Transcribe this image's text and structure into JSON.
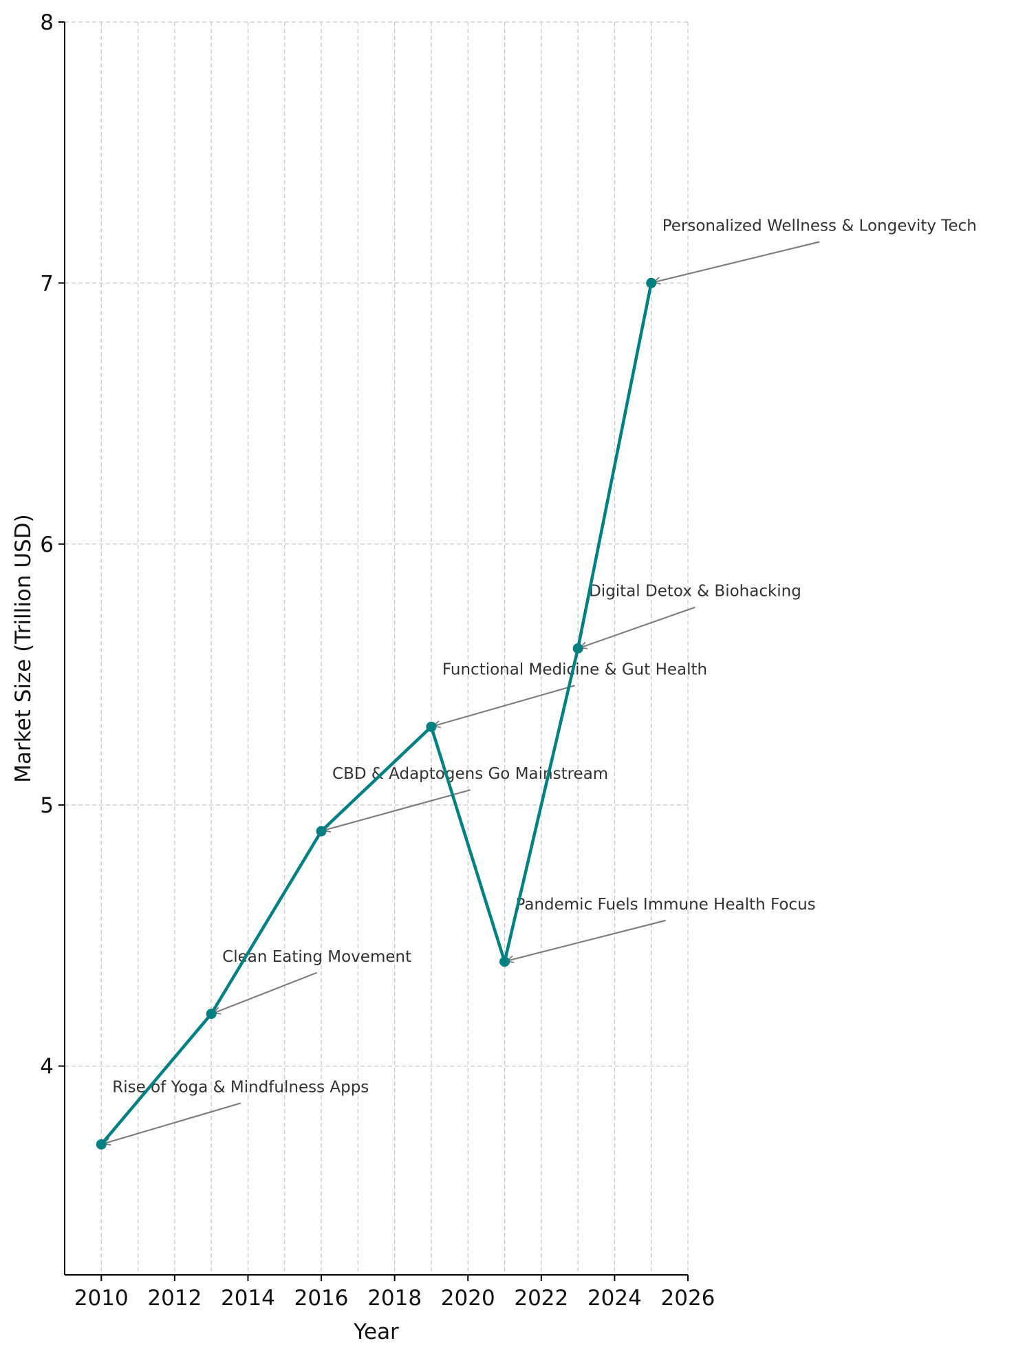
{
  "chart_data": {
    "type": "line",
    "title": "",
    "xlabel": "Year",
    "ylabel": "Market Size (Trillion USD)",
    "xlim": [
      2009,
      2026
    ],
    "ylim": [
      3.2,
      8
    ],
    "x_ticks": [
      2010,
      2012,
      2014,
      2016,
      2018,
      2020,
      2022,
      2024,
      2026
    ],
    "y_ticks": [
      4,
      5,
      6,
      7,
      8
    ],
    "grid": true,
    "series": [
      {
        "color": "#008080",
        "marker": "circle",
        "points": [
          {
            "x": 2010,
            "y": 3.7
          },
          {
            "x": 2013,
            "y": 4.2
          },
          {
            "x": 2016,
            "y": 4.9
          },
          {
            "x": 2019,
            "y": 5.3
          },
          {
            "x": 2021,
            "y": 4.4
          },
          {
            "x": 2023,
            "y": 5.6
          },
          {
            "x": 2025,
            "y": 7.0
          }
        ]
      }
    ],
    "annotations": [
      {
        "x": 2010,
        "y": 3.7,
        "text": "Rise of Yoga & Mindfulness Apps"
      },
      {
        "x": 2013,
        "y": 4.2,
        "text": "Clean Eating Movement"
      },
      {
        "x": 2016,
        "y": 4.9,
        "text": "CBD & Adaptogens Go Mainstream"
      },
      {
        "x": 2019,
        "y": 5.3,
        "text": "Functional Medicine & Gut Health"
      },
      {
        "x": 2021,
        "y": 4.4,
        "text": "Pandemic Fuels Immune Health Focus"
      },
      {
        "x": 2023,
        "y": 5.6,
        "text": "Digital Detox & Biohacking"
      },
      {
        "x": 2025,
        "y": 7.0,
        "text": "Personalized Wellness & Longevity Tech"
      }
    ],
    "colors": {
      "line": "#008080",
      "arrow": "#808080",
      "grid": "#c8c8c8"
    }
  }
}
